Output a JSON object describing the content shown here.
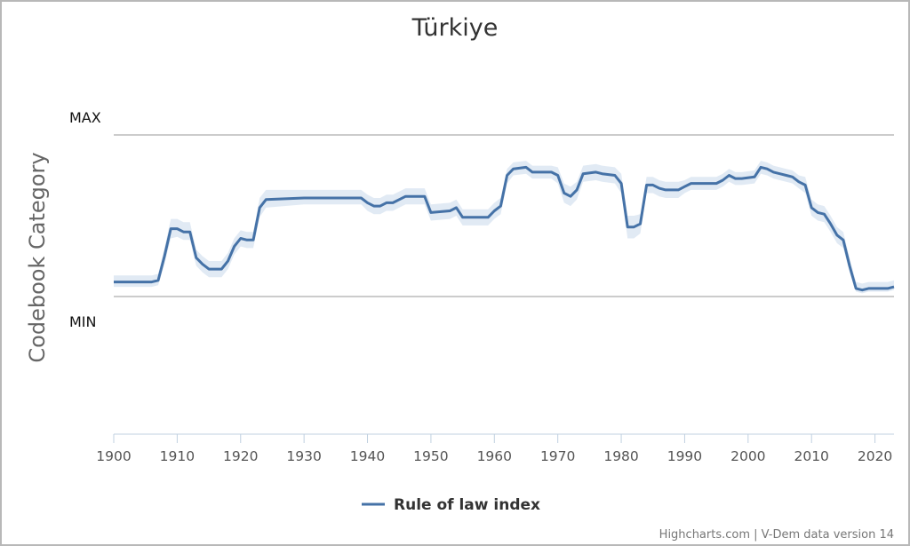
{
  "chart_data": {
    "type": "line",
    "title": "Türkiye",
    "ylabel": "Codebook Category",
    "y_category_labels": {
      "max": "MAX",
      "min": "MIN"
    },
    "xlim": [
      1900,
      2023
    ],
    "ylim": [
      0,
      1
    ],
    "xticks": [
      1900,
      1910,
      1920,
      1930,
      1940,
      1950,
      1960,
      1970,
      1980,
      1990,
      2000,
      2010,
      2020
    ],
    "grid": false,
    "legend_position": "bottom-center",
    "colors": {
      "line": "#4572a7",
      "band": "#dce6f2",
      "reference_lines": "#cccccc",
      "axis": "#c0d0e0"
    },
    "series": [
      {
        "name": "Rule of law index",
        "x": [
          1900,
          1906,
          1907,
          1908,
          1909,
          1910,
          1911,
          1912,
          1913,
          1914,
          1915,
          1916,
          1917,
          1918,
          1919,
          1920,
          1921,
          1922,
          1923,
          1924,
          1930,
          1939,
          1940,
          1941,
          1942,
          1943,
          1944,
          1945,
          1946,
          1947,
          1949,
          1950,
          1953,
          1954,
          1955,
          1959,
          1960,
          1961,
          1962,
          1963,
          1965,
          1966,
          1969,
          1970,
          1971,
          1972,
          1973,
          1974,
          1976,
          1977,
          1979,
          1980,
          1981,
          1982,
          1983,
          1984,
          1985,
          1986,
          1987,
          1988,
          1989,
          1990,
          1991,
          1992,
          1995,
          1996,
          1997,
          1998,
          1999,
          2001,
          2002,
          2003,
          2004,
          2005,
          2006,
          2007,
          2008,
          2009,
          2010,
          2011,
          2012,
          2013,
          2014,
          2015,
          2016,
          2017,
          2018,
          2019,
          2020,
          2021,
          2022,
          2023
        ],
        "values": [
          0.09,
          0.09,
          0.1,
          0.25,
          0.42,
          0.42,
          0.4,
          0.4,
          0.24,
          0.2,
          0.17,
          0.17,
          0.17,
          0.22,
          0.31,
          0.36,
          0.35,
          0.35,
          0.55,
          0.6,
          0.61,
          0.61,
          0.58,
          0.56,
          0.56,
          0.58,
          0.58,
          0.6,
          0.62,
          0.62,
          0.62,
          0.52,
          0.53,
          0.55,
          0.49,
          0.49,
          0.53,
          0.56,
          0.75,
          0.79,
          0.8,
          0.77,
          0.77,
          0.75,
          0.64,
          0.62,
          0.66,
          0.76,
          0.77,
          0.76,
          0.75,
          0.7,
          0.43,
          0.43,
          0.45,
          0.69,
          0.69,
          0.67,
          0.66,
          0.66,
          0.66,
          0.68,
          0.7,
          0.7,
          0.7,
          0.72,
          0.75,
          0.73,
          0.73,
          0.74,
          0.8,
          0.79,
          0.77,
          0.76,
          0.75,
          0.74,
          0.71,
          0.69,
          0.55,
          0.52,
          0.51,
          0.45,
          0.38,
          0.35,
          0.19,
          0.05,
          0.04,
          0.05,
          0.05,
          0.05,
          0.05,
          0.06
        ],
        "lower": [
          0.06,
          0.06,
          0.07,
          0.2,
          0.36,
          0.37,
          0.35,
          0.35,
          0.19,
          0.15,
          0.12,
          0.12,
          0.12,
          0.17,
          0.26,
          0.31,
          0.3,
          0.3,
          0.49,
          0.55,
          0.57,
          0.57,
          0.53,
          0.51,
          0.51,
          0.53,
          0.53,
          0.55,
          0.57,
          0.57,
          0.57,
          0.47,
          0.48,
          0.5,
          0.44,
          0.44,
          0.48,
          0.51,
          0.7,
          0.75,
          0.76,
          0.73,
          0.73,
          0.7,
          0.58,
          0.56,
          0.6,
          0.71,
          0.72,
          0.71,
          0.7,
          0.64,
          0.36,
          0.36,
          0.39,
          0.64,
          0.64,
          0.62,
          0.61,
          0.61,
          0.61,
          0.64,
          0.66,
          0.66,
          0.66,
          0.68,
          0.71,
          0.69,
          0.69,
          0.7,
          0.76,
          0.75,
          0.73,
          0.72,
          0.71,
          0.7,
          0.67,
          0.64,
          0.5,
          0.47,
          0.46,
          0.4,
          0.33,
          0.3,
          0.15,
          0.03,
          0.02,
          0.03,
          0.03,
          0.03,
          0.03,
          0.04
        ],
        "upper": [
          0.13,
          0.13,
          0.14,
          0.3,
          0.48,
          0.48,
          0.46,
          0.46,
          0.29,
          0.25,
          0.22,
          0.22,
          0.22,
          0.27,
          0.36,
          0.41,
          0.4,
          0.4,
          0.61,
          0.66,
          0.66,
          0.66,
          0.63,
          0.61,
          0.61,
          0.63,
          0.63,
          0.65,
          0.67,
          0.67,
          0.67,
          0.57,
          0.58,
          0.6,
          0.54,
          0.54,
          0.58,
          0.61,
          0.79,
          0.83,
          0.84,
          0.81,
          0.81,
          0.8,
          0.7,
          0.68,
          0.71,
          0.81,
          0.82,
          0.81,
          0.8,
          0.76,
          0.5,
          0.5,
          0.51,
          0.74,
          0.74,
          0.72,
          0.71,
          0.71,
          0.71,
          0.72,
          0.74,
          0.74,
          0.74,
          0.76,
          0.79,
          0.77,
          0.77,
          0.78,
          0.84,
          0.83,
          0.81,
          0.8,
          0.79,
          0.78,
          0.75,
          0.74,
          0.6,
          0.57,
          0.56,
          0.5,
          0.43,
          0.4,
          0.24,
          0.09,
          0.08,
          0.09,
          0.09,
          0.09,
          0.09,
          0.1
        ]
      }
    ]
  },
  "credits": "Highcharts.com | V-Dem data version 14"
}
